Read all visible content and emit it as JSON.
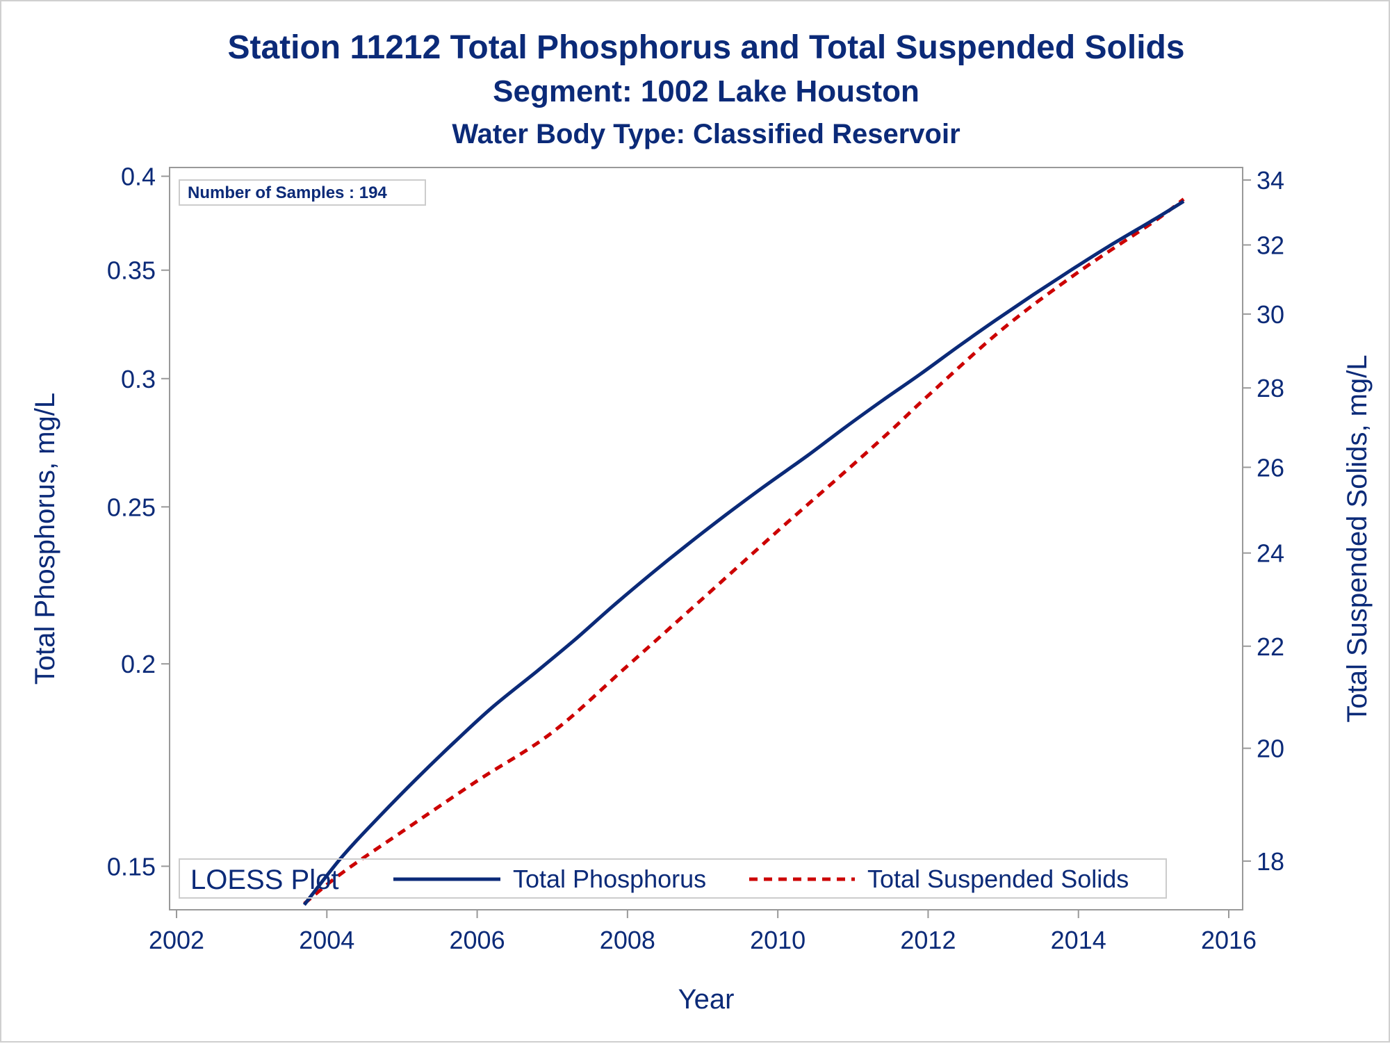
{
  "chart_data": {
    "type": "line",
    "title": "Station 11212  Total Phosphorus and Total Suspended Solids",
    "subtitle": "Segment: 1002  Lake Houston",
    "subtitle2": "Water Body Type: Classified Reservoir",
    "xlabel": "Year",
    "ylabel_left": "Total Phosphorus, mg/L",
    "ylabel_right": "Total Suspended Solids, mg/L",
    "xlim": [
      2002,
      2016
    ],
    "ylim_left": [
      0.141,
      0.405
    ],
    "ylim_right": [
      17.2,
      34.4
    ],
    "y_scale": "log",
    "x_ticks": [
      "2002",
      "2004",
      "2006",
      "2008",
      "2010",
      "2012",
      "2014",
      "2016"
    ],
    "y_left_ticks": [
      "0.15",
      "0.2",
      "0.25",
      "0.3",
      "0.35",
      "0.4"
    ],
    "y_right_ticks": [
      "18",
      "20",
      "22",
      "24",
      "26",
      "28",
      "30",
      "32",
      "34"
    ],
    "sample_count_text": "Number of Samples : 194",
    "legend": {
      "title": "LOESS Plot",
      "position": "bottom",
      "entries": [
        "Total Phosphorus",
        "Total Suspended Solids"
      ]
    },
    "colors": {
      "text": "#0b2a78",
      "series_tp": "#0b2a78",
      "series_tss": "#cc0000",
      "frame": "#999999"
    },
    "series": [
      {
        "name": "Total Phosphorus",
        "axis": "left",
        "style": "solid",
        "x": [
          2003.7,
          2004.2,
          2004.7,
          2005.2,
          2005.7,
          2006.2,
          2006.8,
          2007.3,
          2007.8,
          2008.3,
          2008.8,
          2009.3,
          2009.8,
          2010.4,
          2010.9,
          2011.4,
          2011.9,
          2012.4,
          2012.9,
          2013.4,
          2013.9,
          2014.4,
          2015.0,
          2015.4
        ],
        "y": [
          0.142,
          0.152,
          0.161,
          0.17,
          0.179,
          0.188,
          0.198,
          0.207,
          0.217,
          0.227,
          0.237,
          0.247,
          0.257,
          0.269,
          0.28,
          0.291,
          0.302,
          0.314,
          0.326,
          0.338,
          0.35,
          0.362,
          0.376,
          0.386
        ]
      },
      {
        "name": "Total Suspended Solids",
        "axis": "right",
        "style": "dashed",
        "x": [
          2003.7,
          2004.2,
          2005.0,
          2006.0,
          2007.0,
          2008.0,
          2009.0,
          2010.0,
          2010.9,
          2011.5,
          2012.0,
          2013.0,
          2014.0,
          2015.0,
          2015.4
        ],
        "y": [
          17.3,
          17.8,
          18.5,
          19.4,
          20.3,
          21.6,
          23.0,
          24.5,
          25.9,
          26.9,
          27.8,
          29.6,
          31.2,
          32.7,
          33.4
        ]
      }
    ]
  }
}
